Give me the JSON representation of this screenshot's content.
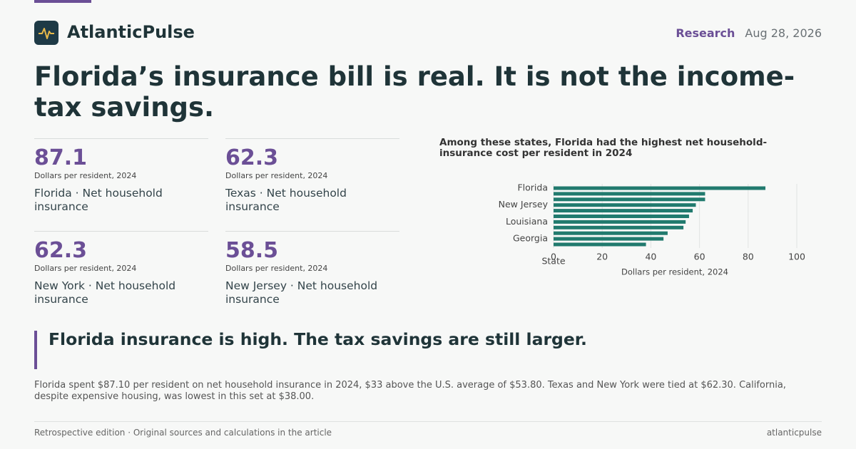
{
  "header": {
    "brand": "AtlanticPulse",
    "section": "Research",
    "date": "Aug 28, 2026"
  },
  "headline": "Florida’s insurance bill is real. It is not the income-tax savings.",
  "stats": [
    {
      "value": 87.1,
      "unit": "Dollars per resident, 2024",
      "label": "Florida · Net household insurance"
    },
    {
      "value": 62.3,
      "unit": "Dollars per resident, 2024",
      "label": "Texas · Net household insurance"
    },
    {
      "value": 62.3,
      "unit": "Dollars per resident, 2024",
      "label": "New York · Net household insurance"
    },
    {
      "value": 58.5,
      "unit": "Dollars per resident, 2024",
      "label": "New Jersey · Net household insurance"
    }
  ],
  "chart_data": {
    "type": "barh",
    "title": "Among these states, Florida had the highest net household-insurance cost per resident in 2024",
    "y_label": "State",
    "x_label": "Dollars per resident, 2024",
    "categories": [
      "Florida",
      null,
      null,
      "New Jersey",
      null,
      null,
      "Louisiana",
      null,
      null,
      "Georgia",
      null
    ],
    "values": [
      87.1,
      62.3,
      62.3,
      58.5,
      57.2,
      55.7,
      54.3,
      53.4,
      46.9,
      45.2,
      38.0
    ],
    "color": "#217a6e",
    "xlim": [
      0,
      100
    ],
    "xticks": [
      0,
      20,
      40,
      60,
      80,
      100
    ],
    "grid": true
  },
  "callout": "Florida insurance is high. The tax savings are still larger.",
  "body": "Florida spent $87.10 per resident on net household insurance in 2024, $33 above the U.S. average of $53.80. Texas and New York were tied at $62.30. California, despite expensive housing, was lowest in this set at $38.00.",
  "footer": {
    "note": "Retrospective edition · Original sources and calculations in the article",
    "site": "atlanticpulse"
  }
}
